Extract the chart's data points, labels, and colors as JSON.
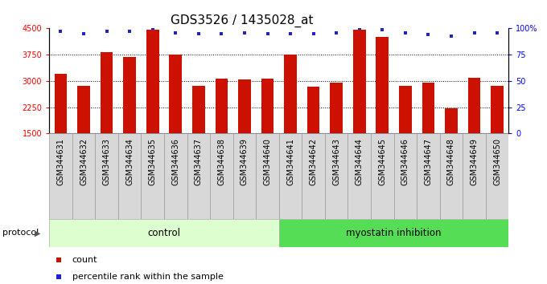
{
  "title": "GDS3526 / 1435028_at",
  "categories": [
    "GSM344631",
    "GSM344632",
    "GSM344633",
    "GSM344634",
    "GSM344635",
    "GSM344636",
    "GSM344637",
    "GSM344638",
    "GSM344639",
    "GSM344640",
    "GSM344641",
    "GSM344642",
    "GSM344643",
    "GSM344644",
    "GSM344645",
    "GSM344646",
    "GSM344647",
    "GSM344648",
    "GSM344649",
    "GSM344650"
  ],
  "bar_values": [
    3200,
    2870,
    3820,
    3680,
    4460,
    3750,
    2870,
    3060,
    3050,
    3070,
    3750,
    2840,
    2950,
    4460,
    4260,
    2870,
    2950,
    2210,
    3080,
    2870
  ],
  "percentile_values": [
    97,
    95,
    97,
    97,
    100,
    96,
    95,
    95,
    96,
    95,
    95,
    95,
    96,
    100,
    99,
    96,
    94,
    93,
    96,
    96
  ],
  "bar_color": "#cc1100",
  "dot_color": "#2222cc",
  "ylim_left": [
    1500,
    4500
  ],
  "ylim_right": [
    0,
    100
  ],
  "yticks_left": [
    1500,
    2250,
    3000,
    3750,
    4500
  ],
  "yticks_right": [
    0,
    25,
    50,
    75,
    100
  ],
  "grid_values": [
    2250,
    3000,
    3750
  ],
  "control_count": 10,
  "myostatin_count": 10,
  "control_label": "control",
  "myostatin_label": "myostatin inhibition",
  "protocol_label": "protocol",
  "legend_count_label": "count",
  "legend_percentile_label": "percentile rank within the sample",
  "control_color": "#ddffd0",
  "myostatin_color": "#55dd55",
  "title_fontsize": 11,
  "tick_fontsize": 7,
  "bar_width": 0.55,
  "label_box_color": "#d8d8d8",
  "label_box_edge": "#999999"
}
